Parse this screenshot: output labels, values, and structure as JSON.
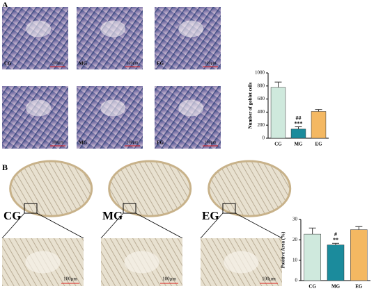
{
  "panel_a": {
    "label": "A",
    "images": [
      {
        "group": "CG",
        "scale": "100μm"
      },
      {
        "group": "MG",
        "scale": "100μm"
      },
      {
        "group": "EG",
        "scale": "100μm"
      },
      {
        "scale": "100μm"
      },
      {
        "group": "MG",
        "scale": "100μm"
      },
      {
        "group": "EG",
        "scale": "100μm"
      }
    ]
  },
  "panel_b": {
    "label": "B",
    "images": [
      {
        "group": "CG"
      },
      {
        "group": "MG"
      },
      {
        "group": "EG"
      }
    ],
    "zooms": [
      {
        "scale": "100μm"
      },
      {
        "scale": "100μm"
      },
      {
        "scale": "100μm"
      }
    ]
  },
  "chart_data": [
    {
      "type": "bar",
      "y_label": "Number of goblet cells",
      "categories": [
        "CG",
        "MG",
        "EG"
      ],
      "values": [
        780,
        140,
        410
      ],
      "errors": [
        80,
        35,
        30
      ],
      "colors": [
        "#cfe9dd",
        "#1b8b9c",
        "#f4b862"
      ],
      "significance": [
        [],
        [
          "##",
          "***"
        ],
        []
      ],
      "ylim": [
        0,
        1000
      ],
      "yticks": [
        0,
        200,
        400,
        600,
        800,
        1000
      ]
    },
    {
      "type": "bar",
      "y_label": "Positive Area (%)",
      "categories": [
        "CG",
        "MG",
        "EG"
      ],
      "values": [
        22.8,
        17.5,
        25
      ],
      "errors": [
        3,
        0.8,
        1.5
      ],
      "colors": [
        "#cfe9dd",
        "#1b8b9c",
        "#f4b862"
      ],
      "significance": [
        [],
        [
          "#",
          "**"
        ],
        []
      ],
      "ylim": [
        0,
        30
      ],
      "yticks": [
        0,
        10,
        20,
        30
      ]
    }
  ]
}
